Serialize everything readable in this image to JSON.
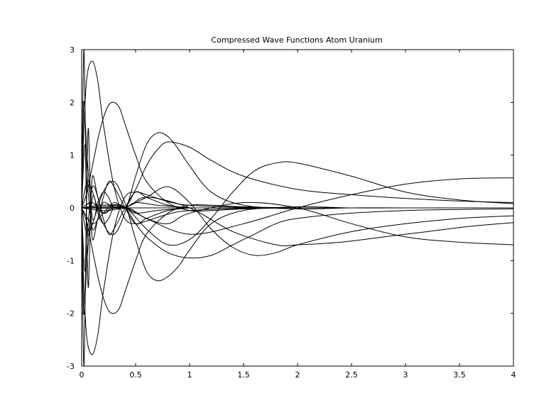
{
  "chart_data": {
    "type": "line",
    "title": "Compressed Wave Functions Atom Uranium",
    "xlabel": "",
    "ylabel": "",
    "xlim": [
      0,
      4
    ],
    "ylim": [
      -3,
      3
    ],
    "x_ticks": [
      0,
      0.5,
      1,
      1.5,
      2,
      2.5,
      3,
      3.5,
      4
    ],
    "x_tick_labels": [
      "0",
      "0.5",
      "1",
      "1.5",
      "2",
      "2.5",
      "3",
      "3.5",
      "4"
    ],
    "y_ticks": [
      -3,
      -2,
      -1,
      0,
      1,
      2,
      3
    ],
    "y_tick_labels": [
      "-3",
      "-2",
      "-1",
      "0",
      "1",
      "2",
      "3"
    ],
    "grid": false,
    "legend": "none",
    "series": [
      {
        "x": [
          0,
          0.02,
          0.05,
          0.1,
          0.15,
          0.2,
          0.3,
          0.4,
          0.5,
          0.6,
          0.8,
          1.0,
          1.5,
          2,
          3,
          4
        ],
        "y": [
          0,
          1.5,
          2.5,
          2.78,
          2.4,
          1.6,
          0.4,
          -0.2,
          -0.3,
          -0.25,
          -0.12,
          -0.05,
          -0.01,
          0,
          0,
          0
        ]
      },
      {
        "x": [
          0,
          0.02,
          0.05,
          0.1,
          0.15,
          0.2,
          0.3,
          0.4,
          0.5,
          0.6,
          0.8,
          1.0,
          1.5,
          2,
          3,
          4
        ],
        "y": [
          0,
          -1.5,
          -2.5,
          -2.78,
          -2.4,
          -1.6,
          -0.4,
          0.2,
          0.3,
          0.25,
          0.12,
          0.05,
          0.01,
          0,
          0,
          0
        ]
      },
      {
        "x": [
          0,
          0.05,
          0.1,
          0.15,
          0.2,
          0.25,
          0.3,
          0.35,
          0.4,
          0.5,
          0.6,
          0.8,
          1.0,
          1.2,
          1.5,
          2,
          3,
          4
        ],
        "y": [
          0,
          0.3,
          0.8,
          1.3,
          1.7,
          1.95,
          2.0,
          1.9,
          1.6,
          1.0,
          0.5,
          0.1,
          -0.05,
          -0.05,
          -0.02,
          0,
          0,
          0
        ]
      },
      {
        "x": [
          0,
          0.05,
          0.1,
          0.15,
          0.2,
          0.25,
          0.3,
          0.35,
          0.4,
          0.5,
          0.6,
          0.8,
          1.0,
          1.2,
          1.5,
          2,
          3,
          4
        ],
        "y": [
          0,
          -0.3,
          -0.8,
          -1.3,
          -1.7,
          -1.95,
          -2.0,
          -1.9,
          -1.6,
          -1.0,
          -0.5,
          -0.1,
          0.05,
          0.05,
          0.02,
          0,
          0,
          0
        ]
      },
      {
        "x": [
          0,
          0.05,
          0.1,
          0.2,
          0.3,
          0.4,
          0.5,
          0.6,
          0.7,
          0.8,
          0.9,
          1.0,
          1.2,
          1.5,
          2,
          2.5,
          3,
          4
        ],
        "y": [
          0,
          0.5,
          0.3,
          -0.3,
          -0.5,
          -0.1,
          0.6,
          1.2,
          1.42,
          1.35,
          1.1,
          0.8,
          0.3,
          0.05,
          -0.02,
          0,
          0,
          0
        ]
      },
      {
        "x": [
          0,
          0.05,
          0.1,
          0.2,
          0.3,
          0.4,
          0.5,
          0.6,
          0.7,
          0.8,
          0.9,
          1.0,
          1.2,
          1.5,
          2,
          2.5,
          3,
          4
        ],
        "y": [
          0,
          -0.5,
          -0.3,
          0.3,
          0.5,
          0.1,
          -0.6,
          -1.2,
          -1.38,
          -1.3,
          -1.1,
          -0.8,
          -0.3,
          -0.05,
          0.02,
          0,
          0,
          0
        ]
      },
      {
        "x": [
          0,
          0.1,
          0.2,
          0.3,
          0.4,
          0.5,
          0.6,
          0.7,
          0.8,
          1.0,
          1.2,
          1.5,
          2.0,
          2.5,
          3.0,
          3.5,
          4.0
        ],
        "y": [
          0,
          -0.3,
          -0.1,
          0.1,
          0.01,
          0.35,
          0.8,
          1.1,
          1.25,
          1.15,
          0.9,
          0.6,
          0.35,
          0.25,
          0.18,
          0.13,
          0.1
        ]
      },
      {
        "x": [
          0,
          0.1,
          0.2,
          0.3,
          0.4,
          0.5,
          0.6,
          0.8,
          1.0,
          1.2,
          1.4,
          1.6,
          1.8,
          2.0,
          2.5,
          3.0,
          3.5,
          4.0
        ],
        "y": [
          0,
          0.1,
          -0.1,
          0.05,
          0.01,
          -0.3,
          -0.55,
          -0.85,
          -0.95,
          -0.9,
          -0.7,
          -0.5,
          -0.3,
          -0.2,
          -0.1,
          -0.05,
          -0.03,
          -0.02
        ]
      },
      {
        "x": [
          0,
          0.2,
          0.4,
          0.6,
          0.8,
          1.0,
          1.2,
          1.4,
          1.6,
          1.8,
          2.0,
          2.5,
          3.0,
          3.5,
          4.0
        ],
        "y": [
          0,
          0.05,
          0.01,
          -0.4,
          -0.7,
          -0.6,
          -0.2,
          0.3,
          0.7,
          0.85,
          0.85,
          0.6,
          0.3,
          0.15,
          0.08
        ]
      },
      {
        "x": [
          0,
          0.2,
          0.4,
          0.6,
          0.8,
          1.0,
          1.2,
          1.4,
          1.6,
          1.8,
          2.0,
          2.5,
          3.0,
          3.5,
          4.0
        ],
        "y": [
          0,
          -0.05,
          0.01,
          0.2,
          0.4,
          0.1,
          -0.4,
          -0.75,
          -0.9,
          -0.85,
          -0.7,
          -0.45,
          -0.3,
          -0.2,
          -0.15
        ]
      },
      {
        "x": [
          0,
          0.2,
          0.4,
          0.6,
          0.8,
          1.0,
          1.5,
          2.0,
          2.5,
          3.0,
          3.5,
          4.0
        ],
        "y": [
          0,
          0.05,
          0.01,
          -0.2,
          -0.3,
          -0.1,
          0.1,
          0.0,
          -0.3,
          -0.55,
          -0.65,
          -0.7
        ]
      },
      {
        "x": [
          0,
          0.4,
          0.6,
          1.0,
          1.4,
          1.8,
          2.0,
          2.4,
          2.8,
          3.2,
          3.6,
          4.0
        ],
        "y": [
          0,
          0.01,
          0.2,
          0.0,
          -0.45,
          -0.7,
          -0.7,
          -0.65,
          -0.55,
          -0.45,
          -0.35,
          -0.28
        ]
      },
      {
        "x": [
          0,
          0.4,
          0.6,
          1.0,
          1.5,
          2.0,
          2.5,
          3.0,
          3.5,
          4.0
        ],
        "y": [
          0,
          0.01,
          -0.2,
          -0.5,
          -0.3,
          0.0,
          0.25,
          0.45,
          0.55,
          0.57
        ]
      },
      {
        "x": [
          0,
          0.03,
          0.06,
          0.1,
          0.15,
          0.2,
          0.25,
          0.3,
          0.4,
          0.5,
          0.6,
          0.8,
          1.0
        ],
        "y": [
          0,
          1.2,
          0.3,
          -0.4,
          -0.2,
          0.2,
          0.5,
          0.4,
          0.01,
          -0.3,
          -0.2,
          -0.05,
          0
        ]
      },
      {
        "x": [
          0,
          0.03,
          0.06,
          0.1,
          0.15,
          0.2,
          0.25,
          0.3,
          0.4,
          0.5,
          0.6,
          0.8,
          1.0
        ],
        "y": [
          0,
          -1.2,
          -0.3,
          0.4,
          0.2,
          -0.2,
          -0.5,
          -0.4,
          -0.01,
          0.3,
          0.2,
          0.05,
          0
        ]
      },
      {
        "x": [
          0,
          0.02,
          0.04,
          0.06,
          0.08,
          0.1,
          0.15,
          0.2,
          0.3,
          0.4
        ],
        "y": [
          0,
          3.0,
          0.5,
          -1.5,
          -0.3,
          0.6,
          0.2,
          -0.1,
          0,
          0
        ]
      },
      {
        "x": [
          0,
          0.02,
          0.04,
          0.06,
          0.08,
          0.1,
          0.15,
          0.2,
          0.3,
          0.4
        ],
        "y": [
          0,
          -3.0,
          -0.5,
          1.5,
          0.3,
          -0.6,
          -0.2,
          0.1,
          0,
          0
        ]
      },
      {
        "x": [
          0,
          0.02,
          0.05,
          0.1,
          0.15,
          0.2,
          0.25,
          0.3,
          0.4,
          0.5,
          0.7,
          1.0
        ],
        "y": [
          0,
          2.0,
          1.0,
          -0.2,
          0.1,
          0.3,
          0.2,
          0.0,
          0.01,
          -0.1,
          -0.05,
          0
        ]
      },
      {
        "x": [
          0,
          0.02,
          0.05,
          0.1,
          0.15,
          0.2,
          0.25,
          0.3,
          0.4,
          0.5,
          0.7,
          1.0
        ],
        "y": [
          0,
          -2.0,
          -1.0,
          0.2,
          -0.1,
          -0.3,
          -0.2,
          0.0,
          -0.01,
          0.1,
          0.05,
          0
        ]
      },
      {
        "x": [
          0,
          0.5,
          1,
          1.5,
          2,
          2.5,
          3,
          3.5,
          4
        ],
        "y": [
          0,
          0,
          0,
          0,
          0,
          0,
          0,
          0,
          0
        ]
      }
    ]
  }
}
